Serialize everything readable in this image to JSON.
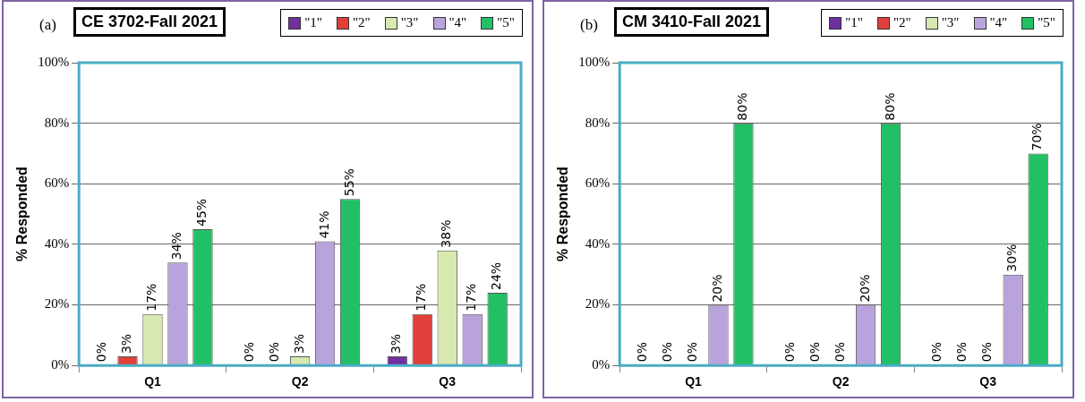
{
  "chart_data": [
    {
      "type": "bar",
      "title": "CE 3702-Fall 2021",
      "annotations": [
        "(a)"
      ],
      "ylabel": "% Responded",
      "categories": [
        "Q1",
        "Q2",
        "Q3"
      ],
      "ylim": [
        0,
        100
      ],
      "yticks": [
        {
          "value": 0,
          "label": "0%"
        },
        {
          "value": 20,
          "label": "20%"
        },
        {
          "value": 40,
          "label": "40%"
        },
        {
          "value": 60,
          "label": "60%"
        },
        {
          "value": 80,
          "label": "80%"
        },
        {
          "value": 100,
          "label": "100%"
        }
      ],
      "grid": "y",
      "legend": "top right",
      "series": [
        {
          "name": "\"1\"",
          "color": "#7030a0",
          "values": [
            0,
            0,
            3
          ],
          "value_labels": [
            "0%",
            "0%",
            "3%"
          ]
        },
        {
          "name": "\"2\"",
          "color": "#e0403a",
          "values": [
            3,
            0,
            17
          ],
          "value_labels": [
            "3%",
            "0%",
            "17%"
          ]
        },
        {
          "name": "\"3\"",
          "color": "#d7e9b0",
          "values": [
            17,
            3,
            38
          ],
          "value_labels": [
            "17%",
            "3%",
            "38%"
          ]
        },
        {
          "name": "\"4\"",
          "color": "#b9a3dc",
          "values": [
            34,
            41,
            17
          ],
          "value_labels": [
            "34%",
            "41%",
            "17%"
          ]
        },
        {
          "name": "\"5\"",
          "color": "#22c064",
          "values": [
            45,
            55,
            24
          ],
          "value_labels": [
            "45%",
            "55%",
            "24%"
          ]
        }
      ]
    },
    {
      "type": "bar",
      "title": "CM 3410-Fall 2021",
      "annotations": [
        "(b)"
      ],
      "ylabel": "% Responded",
      "categories": [
        "Q1",
        "Q2",
        "Q3"
      ],
      "ylim": [
        0,
        100
      ],
      "yticks": [
        {
          "value": 0,
          "label": "0%"
        },
        {
          "value": 20,
          "label": "20%"
        },
        {
          "value": 40,
          "label": "40%"
        },
        {
          "value": 60,
          "label": "60%"
        },
        {
          "value": 80,
          "label": "80%"
        },
        {
          "value": 100,
          "label": "100%"
        }
      ],
      "grid": "y",
      "legend": "top right",
      "series": [
        {
          "name": "\"1\"",
          "color": "#7030a0",
          "values": [
            0,
            0,
            0
          ],
          "value_labels": [
            "0%",
            "0%",
            "0%"
          ]
        },
        {
          "name": "\"2\"",
          "color": "#e0403a",
          "values": [
            0,
            0,
            0
          ],
          "value_labels": [
            "0%",
            "0%",
            "0%"
          ]
        },
        {
          "name": "\"3\"",
          "color": "#d7e9b0",
          "values": [
            0,
            0,
            0
          ],
          "value_labels": [
            "0%",
            "0%",
            "0%"
          ]
        },
        {
          "name": "\"4\"",
          "color": "#b9a3dc",
          "values": [
            20,
            20,
            30
          ],
          "value_labels": [
            "20%",
            "20%",
            "30%"
          ]
        },
        {
          "name": "\"5\"",
          "color": "#22c064",
          "values": [
            80,
            80,
            70
          ],
          "value_labels": [
            "80%",
            "80%",
            "70%"
          ]
        }
      ]
    }
  ]
}
